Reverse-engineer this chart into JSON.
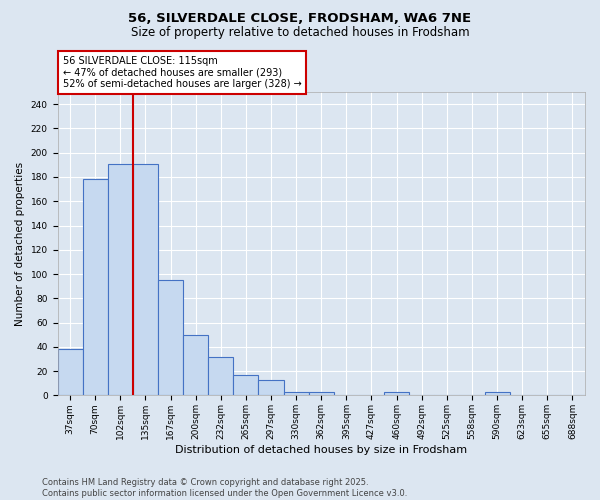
{
  "title": "56, SILVERDALE CLOSE, FRODSHAM, WA6 7NE",
  "subtitle": "Size of property relative to detached houses in Frodsham",
  "xlabel": "Distribution of detached houses by size in Frodsham",
  "ylabel": "Number of detached properties",
  "categories": [
    "37sqm",
    "70sqm",
    "102sqm",
    "135sqm",
    "167sqm",
    "200sqm",
    "232sqm",
    "265sqm",
    "297sqm",
    "330sqm",
    "362sqm",
    "395sqm",
    "427sqm",
    "460sqm",
    "492sqm",
    "525sqm",
    "558sqm",
    "590sqm",
    "623sqm",
    "655sqm",
    "688sqm"
  ],
  "values": [
    38,
    178,
    191,
    191,
    95,
    50,
    32,
    17,
    13,
    3,
    3,
    0,
    0,
    3,
    0,
    0,
    0,
    3,
    0,
    0,
    0
  ],
  "bar_color": "#c6d9f0",
  "bar_edge_color": "#4472c4",
  "red_line_index": 2.5,
  "annotation_line1": "56 SILVERDALE CLOSE: 115sqm",
  "annotation_line2": "← 47% of detached houses are smaller (293)",
  "annotation_line3": "52% of semi-detached houses are larger (328) →",
  "annotation_box_color": "#ffffff",
  "annotation_box_edge": "#cc0000",
  "ylim": [
    0,
    250
  ],
  "yticks": [
    0,
    20,
    40,
    60,
    80,
    100,
    120,
    140,
    160,
    180,
    200,
    220,
    240
  ],
  "background_color": "#dce6f1",
  "plot_bg_color": "#dce6f1",
  "footer_line1": "Contains HM Land Registry data © Crown copyright and database right 2025.",
  "footer_line2": "Contains public sector information licensed under the Open Government Licence v3.0.",
  "title_fontsize": 9.5,
  "subtitle_fontsize": 8.5,
  "xlabel_fontsize": 8,
  "ylabel_fontsize": 7.5,
  "tick_fontsize": 6.5,
  "annotation_fontsize": 7,
  "footer_fontsize": 6
}
